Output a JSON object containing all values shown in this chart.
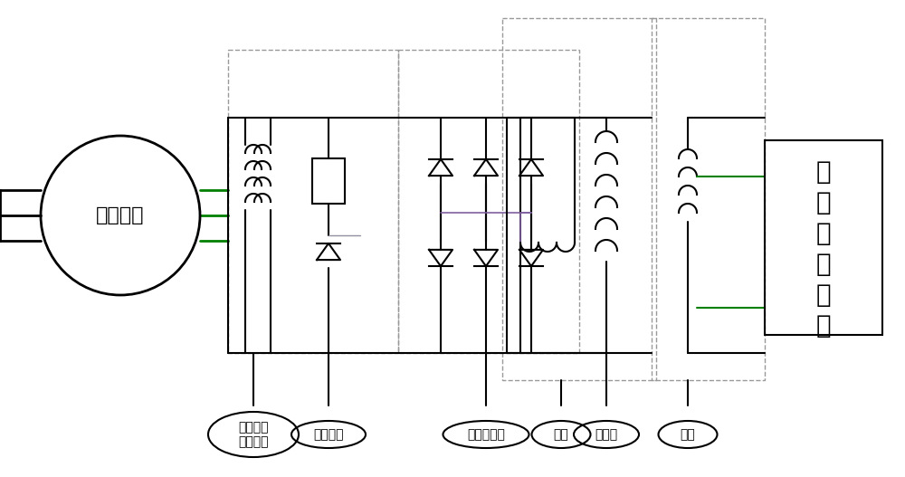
{
  "bg_color": "#ffffff",
  "line_color": "#000000",
  "dashed_color": "#999999",
  "green_color": "#008000",
  "gray_color": "#9090a0",
  "purple_color": "#8060a0",
  "label_motor": "同步电机",
  "label_static": [
    "静",
    "态",
    "励",
    "磁",
    "装",
    "置"
  ],
  "label_winding_1": "同步电机",
  "label_winding_2": "转子绕组",
  "label_resistor": "灭磁电阻",
  "label_rectifier": "旋转整流器",
  "label_exciter": "励磁机",
  "label_rotor": "转子",
  "label_stator": "定子",
  "figsize": [
    10.0,
    5.27
  ],
  "dpi": 100
}
